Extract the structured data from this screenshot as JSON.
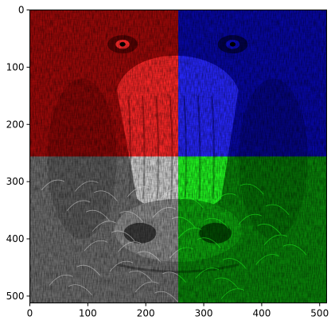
{
  "chart_data": {
    "type": "image",
    "title": "",
    "xlabel": "",
    "ylabel": "",
    "xlim": [
      0,
      512
    ],
    "ylim": [
      512,
      0
    ],
    "y_axis_inverted": true,
    "grid": false,
    "legend": "none",
    "x_ticks": [
      {
        "value": 0,
        "label": "0"
      },
      {
        "value": 100,
        "label": "100"
      },
      {
        "value": 200,
        "label": "200"
      },
      {
        "value": 300,
        "label": "300"
      },
      {
        "value": 400,
        "label": "400"
      },
      {
        "value": 500,
        "label": "500"
      }
    ],
    "y_ticks": [
      {
        "value": 0,
        "label": "0"
      },
      {
        "value": 100,
        "label": "100"
      },
      {
        "value": 200,
        "label": "200"
      },
      {
        "value": 300,
        "label": "300"
      },
      {
        "value": 400,
        "label": "400"
      },
      {
        "value": 500,
        "label": "500"
      }
    ],
    "image_width": 512,
    "image_height": 512,
    "quadrants": [
      {
        "name": "top-left",
        "channel": "red",
        "x": [
          0,
          256
        ],
        "y": [
          0,
          256
        ],
        "color": "#d01010"
      },
      {
        "name": "top-right",
        "channel": "blue",
        "x": [
          256,
          512
        ],
        "y": [
          0,
          256
        ],
        "color": "#1010d0"
      },
      {
        "name": "bottom-left",
        "channel": "gray",
        "x": [
          0,
          256
        ],
        "y": [
          256,
          512
        ],
        "color": "#8c8c8c"
      },
      {
        "name": "bottom-right",
        "channel": "green",
        "x": [
          256,
          512
        ],
        "y": [
          256,
          512
        ],
        "color": "#10b010"
      }
    ]
  }
}
